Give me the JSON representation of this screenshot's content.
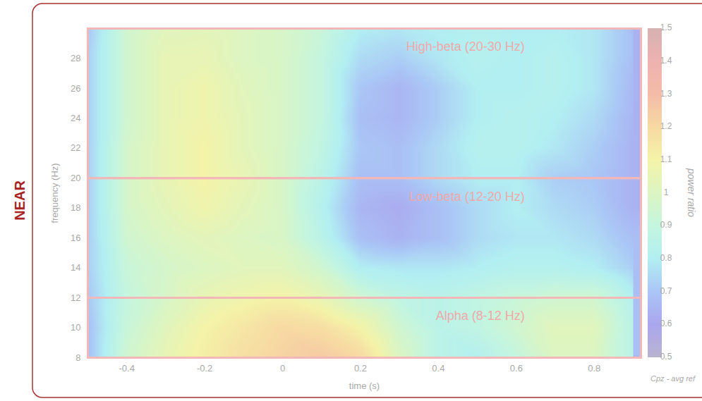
{
  "chart_data": {
    "type": "heatmap",
    "title": "NEAR",
    "xlabel": "time (s)",
    "ylabel": "frequency (Hz)",
    "caption": "Cpz - avg ref",
    "xlim": [
      -0.5,
      0.92
    ],
    "xticks": [
      -0.4,
      -0.2,
      0,
      0.2,
      0.4,
      0.6,
      0.8
    ],
    "ylim": [
      8,
      30
    ],
    "yticks": [
      8,
      10,
      12,
      14,
      16,
      18,
      20,
      22,
      24,
      26,
      28
    ],
    "x": [
      -0.5,
      -0.4,
      -0.3,
      -0.2,
      -0.1,
      0,
      0.1,
      0.2,
      0.3,
      0.4,
      0.5,
      0.6,
      0.7,
      0.8,
      0.9
    ],
    "y": [
      8,
      10,
      12,
      14,
      16,
      18,
      20,
      22,
      24,
      26,
      28,
      30
    ],
    "values": [
      [
        0.68,
        0.95,
        1.05,
        1.12,
        1.18,
        1.22,
        1.25,
        1.2,
        1.0,
        0.85,
        0.82,
        0.9,
        1.0,
        1.0,
        0.85
      ],
      [
        0.68,
        0.92,
        1.02,
        1.1,
        1.15,
        1.2,
        1.18,
        1.1,
        0.95,
        0.85,
        0.88,
        0.95,
        1.02,
        1.02,
        0.85
      ],
      [
        0.7,
        0.9,
        0.98,
        1.05,
        1.08,
        1.1,
        1.05,
        0.95,
        0.88,
        0.85,
        0.88,
        0.92,
        0.95,
        0.95,
        0.82
      ],
      [
        0.72,
        0.92,
        0.97,
        1.0,
        1.02,
        1.02,
        0.95,
        0.8,
        0.78,
        0.78,
        0.8,
        0.82,
        0.82,
        0.8,
        0.72
      ],
      [
        0.72,
        0.95,
        1.0,
        1.03,
        1.0,
        0.98,
        0.85,
        0.68,
        0.64,
        0.68,
        0.75,
        0.78,
        0.78,
        0.75,
        0.68
      ],
      [
        0.72,
        0.97,
        1.03,
        1.08,
        1.03,
        0.98,
        0.82,
        0.65,
        0.62,
        0.68,
        0.75,
        0.8,
        0.75,
        0.72,
        0.64
      ],
      [
        0.72,
        0.97,
        1.05,
        1.1,
        1.05,
        0.98,
        0.85,
        0.68,
        0.68,
        0.75,
        0.8,
        0.8,
        0.72,
        0.7,
        0.64
      ],
      [
        0.72,
        0.97,
        1.05,
        1.1,
        1.03,
        0.98,
        0.88,
        0.7,
        0.68,
        0.75,
        0.82,
        0.82,
        0.78,
        0.72,
        0.64
      ],
      [
        0.72,
        0.95,
        1.05,
        1.08,
        1.03,
        0.98,
        0.9,
        0.68,
        0.65,
        0.72,
        0.8,
        0.82,
        0.8,
        0.75,
        0.65
      ],
      [
        0.72,
        0.95,
        1.05,
        1.08,
        1.02,
        0.98,
        0.9,
        0.7,
        0.65,
        0.72,
        0.8,
        0.8,
        0.82,
        0.78,
        0.66
      ],
      [
        0.72,
        0.95,
        1.05,
        1.05,
        1.0,
        0.98,
        0.9,
        0.75,
        0.72,
        0.78,
        0.82,
        0.8,
        0.82,
        0.78,
        0.68
      ],
      [
        0.7,
        0.95,
        1.02,
        1.03,
        1.0,
        0.98,
        0.92,
        0.8,
        0.78,
        0.8,
        0.82,
        0.8,
        0.8,
        0.78,
        0.68
      ]
    ],
    "colorbar": {
      "label": "power ratio",
      "range": [
        0.5,
        1.5
      ],
      "ticks": [
        0.5,
        0.6,
        0.7,
        0.8,
        0.9,
        1,
        1.1,
        1.2,
        1.3,
        1.4,
        1.5
      ]
    },
    "annotations": [
      {
        "label": "High-beta (20-30 Hz)",
        "low": 20,
        "high": 30
      },
      {
        "label": "Low-beta (12-20 Hz)",
        "low": 12,
        "high": 20
      },
      {
        "label": "Alpha (8-12 Hz)",
        "low": 8,
        "high": 12
      }
    ]
  }
}
